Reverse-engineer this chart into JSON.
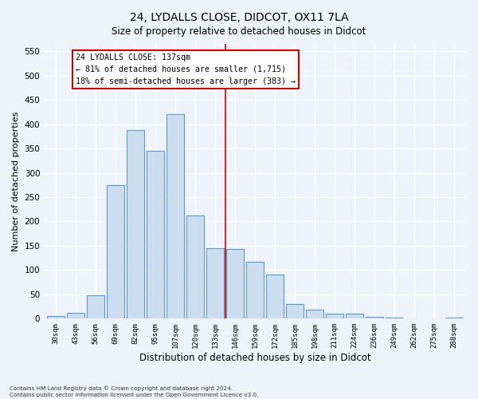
{
  "title": "24, LYDALLS CLOSE, DIDCOT, OX11 7LA",
  "subtitle": "Size of property relative to detached houses in Didcot",
  "xlabel": "Distribution of detached houses by size in Didcot",
  "ylabel": "Number of detached properties",
  "bar_labels": [
    "30sqm",
    "43sqm",
    "56sqm",
    "69sqm",
    "82sqm",
    "95sqm",
    "107sqm",
    "120sqm",
    "133sqm",
    "146sqm",
    "159sqm",
    "172sqm",
    "185sqm",
    "198sqm",
    "211sqm",
    "224sqm",
    "236sqm",
    "249sqm",
    "262sqm",
    "275sqm",
    "288sqm"
  ],
  "bar_values": [
    5,
    12,
    48,
    275,
    388,
    345,
    420,
    213,
    145,
    143,
    117,
    90,
    30,
    18,
    10,
    10,
    4,
    3,
    0,
    0,
    3
  ],
  "bar_color": "#ccddf0",
  "bar_edge_color": "#5b9bd5",
  "property_label": "24 LYDALLS CLOSE: 137sqm",
  "annotation_line1": "← 81% of detached houses are smaller (1,715)",
  "annotation_line2": "18% of semi-detached houses are larger (383) →",
  "vline_color": "#cc0000",
  "vline_position": 8.5,
  "ylim": [
    0,
    565
  ],
  "yticks": [
    0,
    50,
    100,
    150,
    200,
    250,
    300,
    350,
    400,
    450,
    500,
    550
  ],
  "background_color": "#eef2fa",
  "grid_color": "#ffffff",
  "footer_line1": "Contains HM Land Registry data © Crown copyright and database right 2024.",
  "footer_line2": "Contains public sector information licensed under the Open Government Licence v3.0."
}
